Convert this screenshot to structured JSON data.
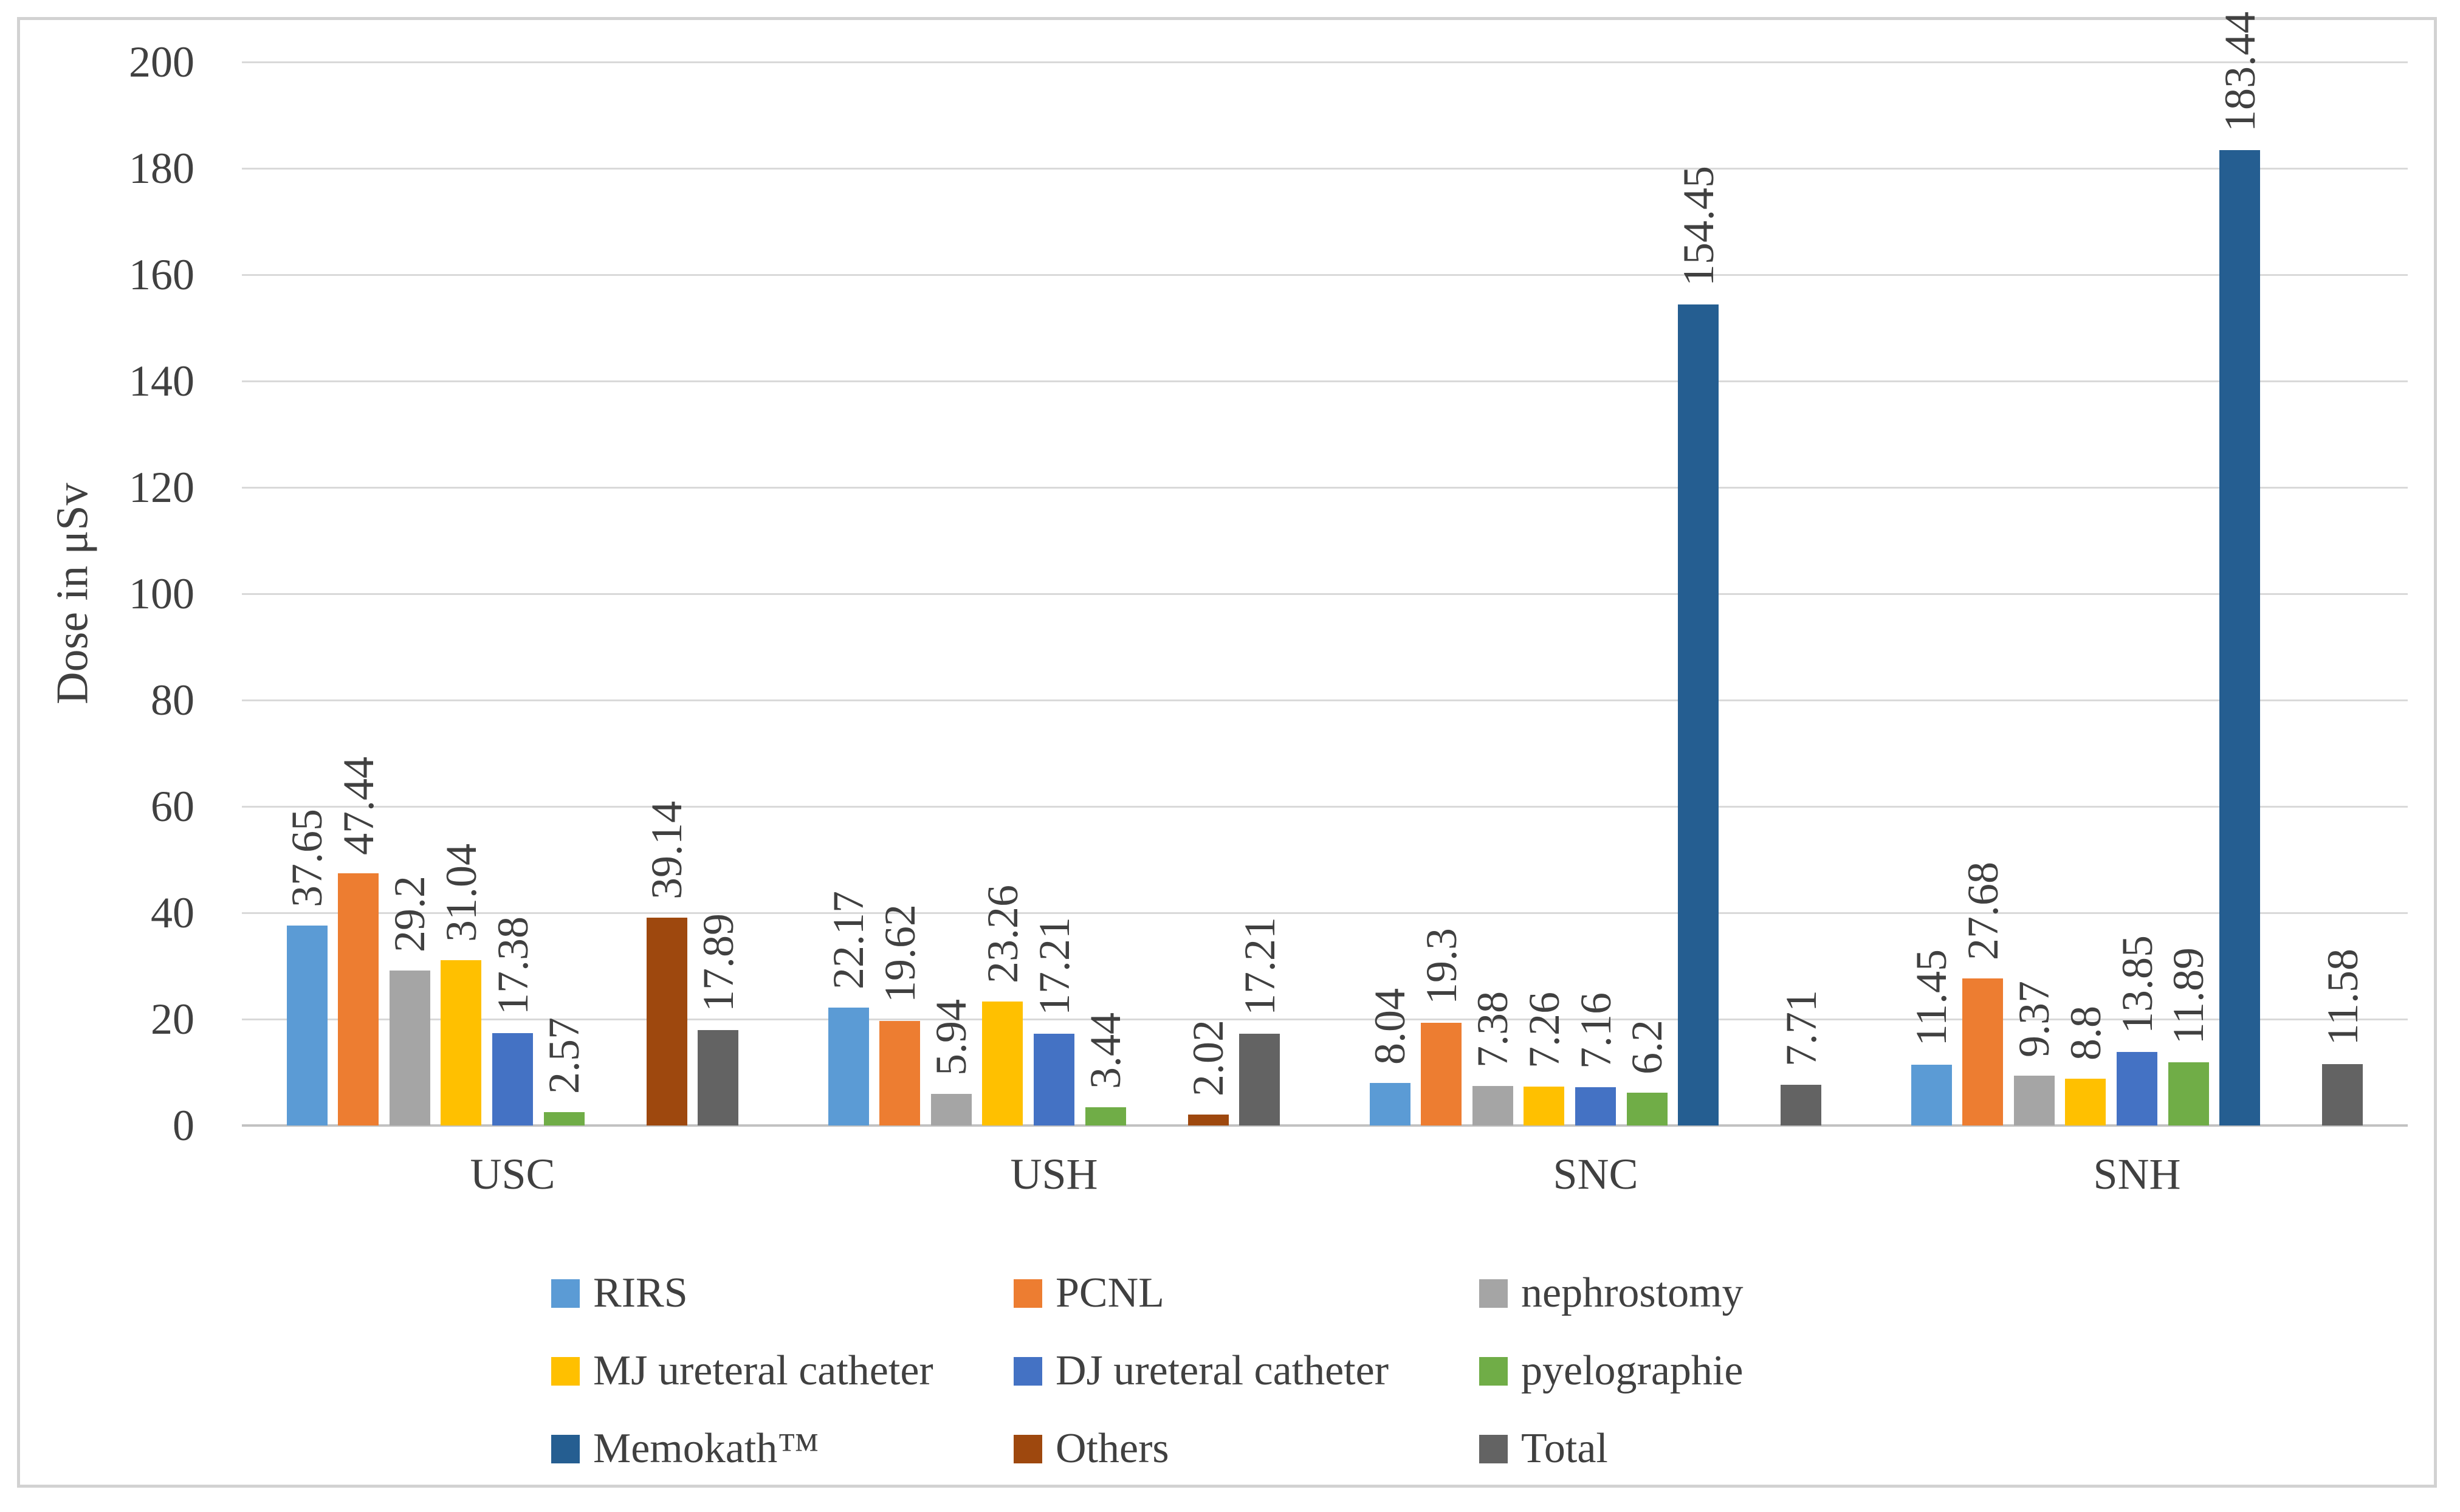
{
  "figure": {
    "background": "#ffffff",
    "border_color": "#d2d2d2",
    "text_color": "#404040",
    "gridline_color": "#d9d9d9"
  },
  "chart_data": {
    "type": "bar",
    "title": "",
    "xlabel": "",
    "ylabel": "Dose in μSv",
    "ylim": [
      0,
      200
    ],
    "ytick_step": 20,
    "grid": true,
    "legend_position": "bottom",
    "categories": [
      "USC",
      "USH",
      "SNC",
      "SNH"
    ],
    "series": [
      {
        "name": "RIRS",
        "color": "#5B9BD5",
        "values": [
          37.65,
          22.17,
          8.04,
          11.45
        ]
      },
      {
        "name": "PCNL",
        "color": "#ED7D31",
        "values": [
          47.44,
          19.62,
          19.3,
          27.68
        ]
      },
      {
        "name": "nephrostomy",
        "color": "#A5A5A5",
        "values": [
          29.2,
          5.94,
          7.38,
          9.37
        ]
      },
      {
        "name": "MJ ureteral catheter",
        "color": "#FFC000",
        "values": [
          31.04,
          23.26,
          7.26,
          8.8
        ]
      },
      {
        "name": "DJ ureteral catheter",
        "color": "#4472C4",
        "values": [
          17.38,
          17.21,
          7.16,
          13.85
        ]
      },
      {
        "name": "pyelographie",
        "color": "#70AD47",
        "values": [
          2.57,
          3.44,
          6.2,
          11.89
        ]
      },
      {
        "name": "Memokath™",
        "color": "#255E91",
        "values": [
          null,
          null,
          154.45,
          183.44
        ]
      },
      {
        "name": "Others",
        "color": "#9E480E",
        "values": [
          39.14,
          2.02,
          null,
          null
        ]
      },
      {
        "name": "Total",
        "color": "#636363",
        "values": [
          17.89,
          17.21,
          7.71,
          11.58
        ]
      }
    ]
  }
}
